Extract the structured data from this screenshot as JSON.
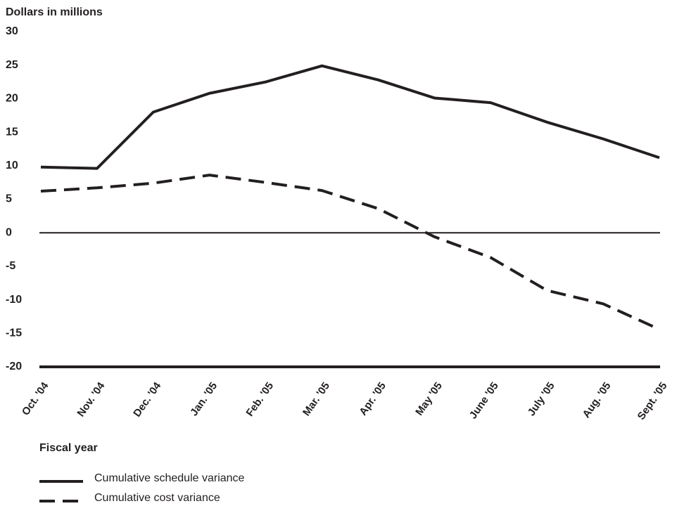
{
  "chart_data": {
    "type": "line",
    "ylabel": "Dollars in millions",
    "xlabel": "Fiscal year",
    "ylim": [
      -20,
      30
    ],
    "yticks": [
      30,
      25,
      20,
      15,
      10,
      5,
      0,
      -5,
      -10,
      -15,
      -20
    ],
    "categories": [
      "Oct. '04",
      "Nov. '04",
      "Dec. '04",
      "Jan. '05",
      "Feb. '05",
      "Mar. '05",
      "Apr. '05",
      "May '05",
      "June '05",
      "July '05",
      "Aug. '05",
      "Sept. '05"
    ],
    "series": [
      {
        "name": "Cumulative schedule variance",
        "style": "solid",
        "values": [
          9.8,
          9.6,
          18.0,
          20.8,
          22.5,
          24.9,
          22.8,
          20.1,
          19.4,
          16.5,
          14.0,
          11.2
        ]
      },
      {
        "name": "Cumulative cost variance",
        "style": "dashed",
        "values": [
          6.2,
          6.7,
          7.4,
          8.6,
          7.5,
          6.3,
          3.6,
          -0.6,
          -3.7,
          -8.6,
          -10.6,
          -14.4
        ]
      }
    ],
    "grid": false,
    "legend_position": "bottom-left",
    "colors": {
      "line": "#231f20"
    }
  }
}
